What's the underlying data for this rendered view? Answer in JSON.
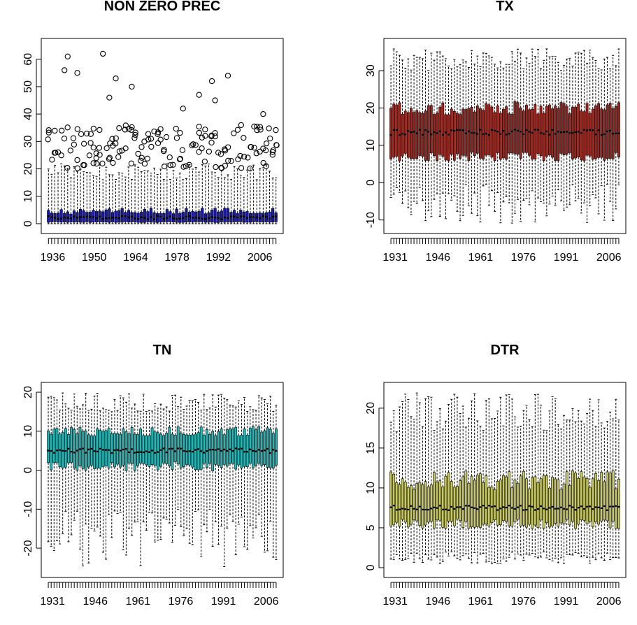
{
  "chart_data": [
    {
      "type": "boxplot",
      "title": "NON ZERO PREC",
      "xlabel": "",
      "ylabel": "",
      "fill_color": "#1a1aa8",
      "x_range": [
        1934,
        2012
      ],
      "x_tick_labels": [
        "1936",
        "1950",
        "1964",
        "1978",
        "1992",
        "2006"
      ],
      "x_tick_values": [
        1936,
        1950,
        1964,
        1978,
        1992,
        2006
      ],
      "ylim": [
        0,
        64
      ],
      "y_ticks": [
        0,
        10,
        20,
        30,
        40,
        50,
        60
      ],
      "outliers_shown": true,
      "whisker_max": [
        18,
        20,
        21,
        19,
        22,
        21,
        20,
        19,
        18
      ],
      "box_upper": [
        4,
        5,
        6,
        5,
        4,
        5,
        5,
        4,
        5
      ],
      "box_lower": [
        0.5,
        0.5,
        0.6,
        0.5,
        0.5,
        0.6,
        0.5,
        0.5,
        0.6
      ],
      "medians": [
        2,
        2.5,
        2,
        2,
        2.5,
        2,
        2,
        2.5,
        2
      ],
      "notable_outliers": [
        62,
        61,
        56,
        55,
        54,
        53,
        52,
        50,
        47,
        46,
        45,
        42,
        40
      ]
    },
    {
      "type": "boxplot",
      "title": "TX",
      "xlabel": "",
      "ylabel": "",
      "fill_color": "#a0221a",
      "x_range": [
        1929,
        2010
      ],
      "x_tick_labels": [
        "1931",
        "1946",
        "1961",
        "1976",
        "1991",
        "2006"
      ],
      "x_tick_values": [
        1931,
        1946,
        1961,
        1976,
        1991,
        2006
      ],
      "ylim": [
        -11,
        36
      ],
      "y_ticks": [
        -10,
        0,
        10,
        20,
        30
      ],
      "whisker_upper_range": [
        30,
        36
      ],
      "whisker_lower_range": [
        -11,
        0
      ],
      "box_upper_range": [
        17,
        23
      ],
      "box_lower_range": [
        5,
        9
      ],
      "median_range": [
        11,
        16
      ]
    },
    {
      "type": "boxplot",
      "title": "TN",
      "xlabel": "",
      "ylabel": "",
      "fill_color": "#22b8b8",
      "x_range": [
        1929,
        2010
      ],
      "x_tick_labels": [
        "1931",
        "1946",
        "1961",
        "1976",
        "1991",
        "2006"
      ],
      "x_tick_values": [
        1931,
        1946,
        1961,
        1976,
        1991,
        2006
      ],
      "ylim": [
        -25,
        20
      ],
      "y_ticks": [
        -20,
        -10,
        0,
        10,
        20
      ],
      "whisker_upper_range": [
        15,
        20
      ],
      "whisker_lower_range": [
        -25,
        -10
      ],
      "box_upper_range": [
        8,
        12
      ],
      "box_lower_range": [
        -1,
        3
      ],
      "median_range": [
        3,
        7
      ]
    },
    {
      "type": "boxplot",
      "title": "DTR",
      "xlabel": "",
      "ylabel": "",
      "fill_color": "#c8c860",
      "x_range": [
        1929,
        2010
      ],
      "x_tick_labels": [
        "1931",
        "1946",
        "1961",
        "1976",
        "1991",
        "2006"
      ],
      "x_tick_values": [
        1931,
        1946,
        1961,
        1976,
        1991,
        2006
      ],
      "ylim": [
        0,
        22
      ],
      "y_ticks": [
        0,
        5,
        10,
        15,
        20
      ],
      "whisker_upper_range": [
        17,
        22
      ],
      "whisker_lower_range": [
        0.5,
        2
      ],
      "box_upper_range": [
        9,
        13
      ],
      "box_lower_range": [
        4.5,
        6.5
      ],
      "median_range": [
        6.5,
        8.5
      ]
    }
  ]
}
